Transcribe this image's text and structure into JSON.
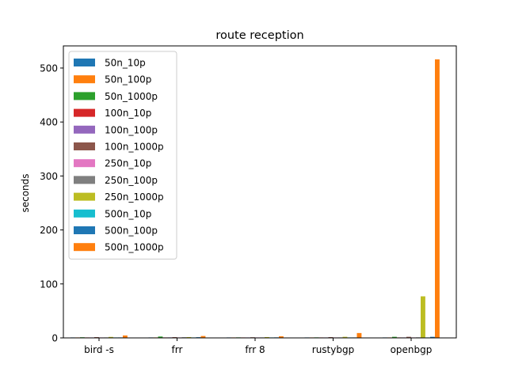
{
  "chart_data": {
    "type": "bar",
    "title": "route reception",
    "xlabel": "",
    "ylabel": "seconds",
    "ylim": [
      0,
      541
    ],
    "yticks": [
      0,
      100,
      200,
      300,
      400,
      500
    ],
    "grid": false,
    "legend_position": "top-left",
    "categories": [
      "bird -s",
      "frr",
      "frr 8",
      "rustybgp",
      "openbgp"
    ],
    "series": [
      {
        "name": "50n_10p",
        "color": "#1f77b4",
        "values": [
          0.4,
          0.6,
          0.4,
          0.3,
          0.5
        ]
      },
      {
        "name": "50n_100p",
        "color": "#ff7f0e",
        "values": [
          0.6,
          0.9,
          0.5,
          0.4,
          0.8
        ]
      },
      {
        "name": "50n_1000p",
        "color": "#2ca02c",
        "values": [
          1.2,
          2.5,
          1.0,
          1.0,
          2.0
        ]
      },
      {
        "name": "100n_10p",
        "color": "#d62728",
        "values": [
          0.4,
          0.7,
          0.5,
          0.4,
          0.6
        ]
      },
      {
        "name": "100n_100p",
        "color": "#9467bd",
        "values": [
          0.6,
          1.0,
          0.6,
          0.5,
          0.9
        ]
      },
      {
        "name": "100n_1000p",
        "color": "#8c564b",
        "values": [
          1.5,
          1.5,
          1.2,
          1.5,
          2.0
        ]
      },
      {
        "name": "250n_10p",
        "color": "#e377c2",
        "values": [
          0.5,
          0.8,
          0.6,
          0.5,
          0.7
        ]
      },
      {
        "name": "250n_100p",
        "color": "#7f7f7f",
        "values": [
          0.7,
          1.2,
          0.8,
          0.6,
          1.0
        ]
      },
      {
        "name": "250n_1000p",
        "color": "#bcbd22",
        "values": [
          1.8,
          1.5,
          1.5,
          2.0,
          77.0
        ]
      },
      {
        "name": "500n_10p",
        "color": "#17becf",
        "values": [
          0.6,
          0.9,
          0.7,
          0.6,
          0.8
        ]
      },
      {
        "name": "500n_100p",
        "color": "#1f77b4",
        "values": [
          0.9,
          1.3,
          1.0,
          0.8,
          2.0
        ]
      },
      {
        "name": "500n_1000p",
        "color": "#ff7f0e",
        "values": [
          4.5,
          3.5,
          3.0,
          9.0,
          516.0
        ]
      }
    ]
  }
}
